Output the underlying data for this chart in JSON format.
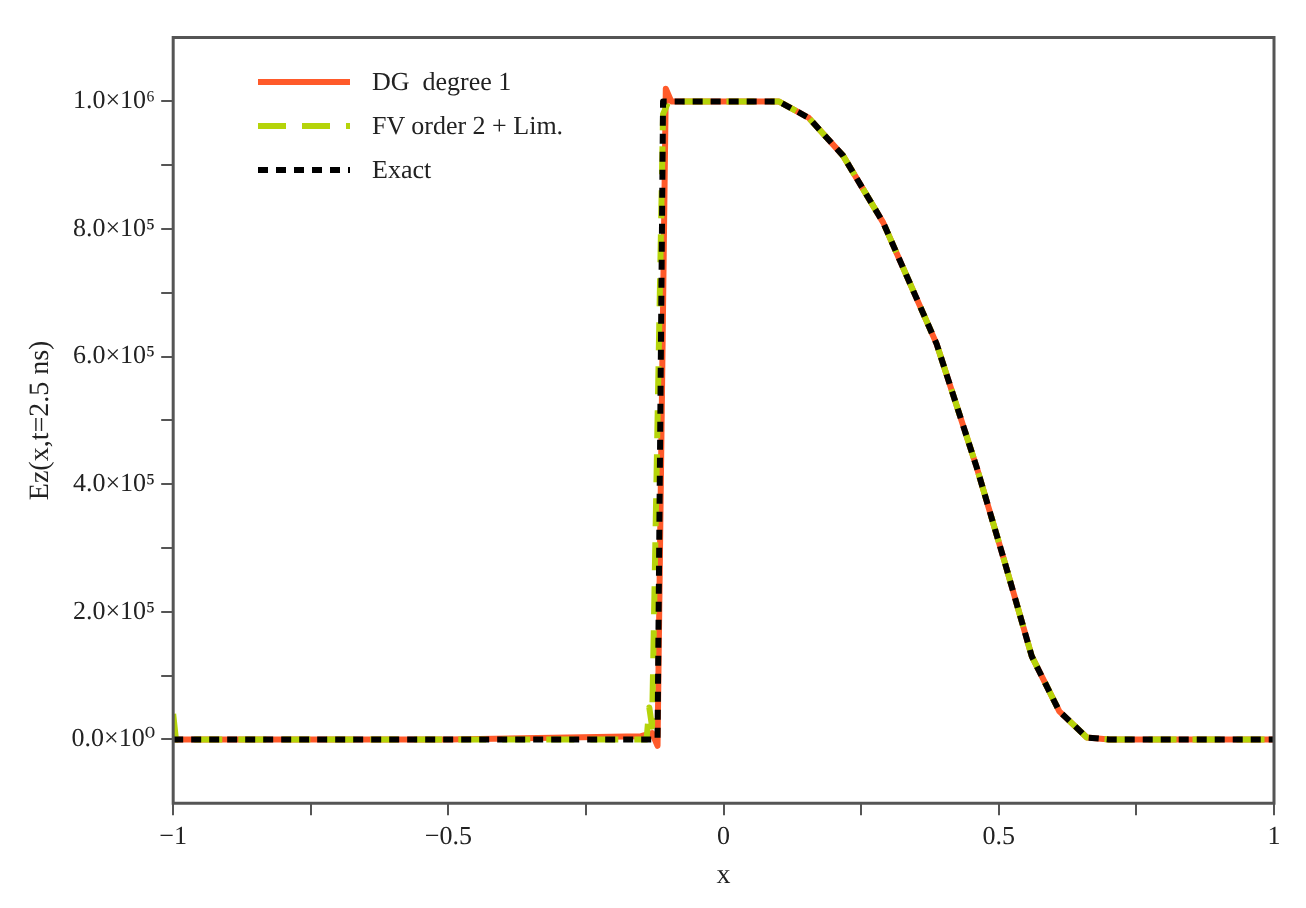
{
  "chart_data": {
    "type": "line",
    "xlabel": "x",
    "ylabel": "Ez(x,t=2.5 ns)",
    "xlim": [
      -1,
      1
    ],
    "xticks": [
      -1,
      {
        "value": -0.75,
        "label": null
      },
      -0.5,
      {
        "value": -0.25,
        "label": null
      },
      0,
      {
        "value": 0.25,
        "label": null
      },
      0.5,
      {
        "value": 0.75,
        "label": null
      },
      1
    ],
    "ylim": [
      -100000,
      1100000
    ],
    "yticks": [
      {
        "value": 0,
        "label": "0.0×10⁰"
      },
      {
        "value": 100000,
        "label": null
      },
      {
        "value": 200000,
        "label": "2.0×10⁵"
      },
      {
        "value": 300000,
        "label": null
      },
      {
        "value": 400000,
        "label": "4.0×10⁵"
      },
      {
        "value": 500000,
        "label": null
      },
      {
        "value": 600000,
        "label": "6.0×10⁵"
      },
      {
        "value": 700000,
        "label": null
      },
      {
        "value": 800000,
        "label": "8.0×10⁵"
      },
      {
        "value": 900000,
        "label": null
      },
      {
        "value": 1000000,
        "label": "1.0×10⁶"
      }
    ],
    "grid": false,
    "legend": "top left",
    "marker": "none",
    "series": [
      {
        "name": "DG  degree 1",
        "color": "#ff5a2a",
        "line_style": "solid",
        "x": [
          -1,
          -0.5,
          -0.15,
          -0.13,
          -0.12,
          -0.105,
          -0.095,
          0.1,
          0.155,
          0.217,
          0.29,
          0.387,
          0.46,
          0.51,
          0.56,
          0.61,
          0.66,
          0.7,
          1
        ],
        "values": [
          0,
          0,
          5000,
          10000,
          -10000,
          1020000,
          1000000,
          1000000,
          974000,
          915000,
          810000,
          620000,
          426000,
          280000,
          130000,
          44000,
          3000,
          0,
          0
        ]
      },
      {
        "name": "FV order 2 + Lim.",
        "color": "#b5d40a",
        "line_style": "dashed",
        "x": [
          -1,
          -0.995,
          -0.5,
          -0.14,
          -0.135,
          -0.13,
          -0.11,
          -0.1,
          0.1,
          0.155,
          0.217,
          0.29,
          0.387,
          0.46,
          0.51,
          0.56,
          0.61,
          0.66,
          0.7,
          1
        ],
        "values": [
          40000,
          0,
          0,
          0,
          50000,
          20000,
          980000,
          1000000,
          1000000,
          974000,
          915000,
          810000,
          620000,
          426000,
          280000,
          130000,
          44000,
          3000,
          0,
          0
        ]
      },
      {
        "name": "Exact",
        "color": "#000000",
        "line_style": "dotted",
        "x": [
          -1,
          -0.12,
          -0.11,
          0.1,
          0.155,
          0.217,
          0.29,
          0.387,
          0.46,
          0.51,
          0.56,
          0.61,
          0.66,
          0.7,
          1
        ],
        "values": [
          0,
          0,
          1000000,
          1000000,
          974000,
          915000,
          810000,
          620000,
          426000,
          280000,
          130000,
          44000,
          3000,
          0,
          0
        ]
      }
    ]
  }
}
